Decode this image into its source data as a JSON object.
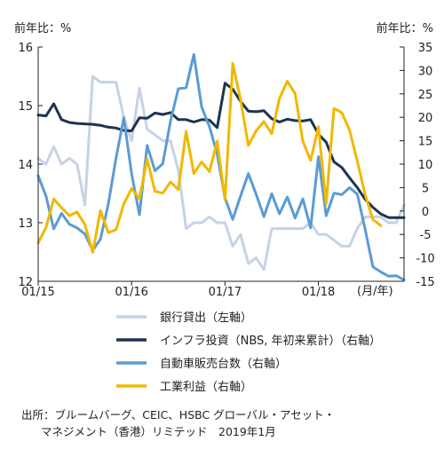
{
  "chart_data": {
    "type": "line",
    "left_axis_label": "前年比：%",
    "right_axis_label": "前年比：%",
    "xaxis_unit_label": "(月/年)",
    "x_tick_labels": [
      "01/15",
      "01/16",
      "01/17",
      "01/18"
    ],
    "x_tick_months": [
      0,
      12,
      24,
      36
    ],
    "x_max_month": 47,
    "left_ylim": [
      12,
      16
    ],
    "left_yticks": [
      12,
      13,
      14,
      15,
      16
    ],
    "right_ylim": [
      -15,
      35
    ],
    "right_yticks": [
      -15,
      -10,
      -5,
      0,
      5,
      10,
      15,
      20,
      25,
      30,
      35
    ],
    "grid": false,
    "series": [
      {
        "name": "銀行貸出（左軸）",
        "axis": "left",
        "color": "#c5d3e6",
        "values": [
          14.1,
          14.0,
          14.3,
          14.0,
          14.1,
          14.0,
          13.3,
          15.5,
          15.4,
          15.4,
          15.4,
          14.8,
          14.4,
          15.3,
          14.6,
          14.5,
          14.4,
          14.4,
          13.9,
          12.9,
          13.0,
          13.0,
          13.1,
          13.0,
          13.0,
          12.6,
          12.8,
          12.3,
          12.4,
          12.2,
          12.9,
          12.9,
          12.9,
          12.9,
          12.9,
          13.0,
          12.8,
          12.8,
          12.7,
          12.6,
          12.6,
          12.9,
          13.1,
          13.1,
          13.1,
          13.0,
          13.0,
          13.3
        ]
      },
      {
        "name": "インフラ投資（NBS、年初来累計）（右軸）",
        "axis": "right",
        "color": "#1f3350",
        "values": [
          20.5,
          20.3,
          22.9,
          19.5,
          18.9,
          18.7,
          18.6,
          18.5,
          18.3,
          17.9,
          17.7,
          17.2,
          17.1,
          19.9,
          19.8,
          20.9,
          20.6,
          21.0,
          19.5,
          19.5,
          19.0,
          19.5,
          19.4,
          17.8,
          27.3,
          26.0,
          23.4,
          21.3,
          21.2,
          21.4,
          19.7,
          19.0,
          19.6,
          19.3,
          19.2,
          19.5,
          16.4,
          14.7,
          10.5,
          9.3,
          7.1,
          5.0,
          2.5,
          0.8,
          -0.6,
          -1.4,
          -1.4,
          -1.4
        ]
      },
      {
        "name": "自動車販売台数（右軸）",
        "axis": "right",
        "color": "#5b9bd5",
        "values": [
          7.5,
          3.2,
          -3.8,
          -0.5,
          -2.8,
          -3.6,
          -4.9,
          -8.4,
          -6.0,
          1.4,
          11.3,
          19.9,
          8.0,
          -0.8,
          14.0,
          8.6,
          10.1,
          19.2,
          26.1,
          26.3,
          33.4,
          22.2,
          18.0,
          12.1,
          2.8,
          -1.8,
          3.2,
          8.0,
          3.6,
          -1.2,
          3.7,
          -0.6,
          3.0,
          -1.5,
          2.6,
          -3.6,
          11.6,
          -1.0,
          3.8,
          3.5,
          5.0,
          3.6,
          -3.9,
          -11.9,
          -13.0,
          -13.9,
          -13.8,
          -14.7
        ]
      },
      {
        "name": "工業利益（右軸）",
        "axis": "right",
        "color": "#f0b800",
        "values": [
          -6.8,
          -3.5,
          2.6,
          0.7,
          -1.0,
          -0.2,
          -2.9,
          -8.8,
          0.1,
          -4.6,
          -4.0,
          1.5,
          4.8,
          2.6,
          11.1,
          4.2,
          3.8,
          6.2,
          4.6,
          17.0,
          8.0,
          10.5,
          8.4,
          14.9,
          2.3,
          31.5,
          23.8,
          14.0,
          17.1,
          19.1,
          16.5,
          24.0,
          27.7,
          25.1,
          14.9,
          10.8,
          18.0,
          1.5,
          21.9,
          21.0,
          17.3,
          10.6,
          3.5,
          -1.8,
          -3.1
        ]
      }
    ]
  },
  "legend": [
    {
      "label": "銀行貸出（左軸）",
      "color": "#c5d3e6"
    },
    {
      "label": "インフラ投資（NBS, 年初来累計）（右軸）",
      "color": "#1f3350"
    },
    {
      "label": "自動車販売台数（右軸）",
      "color": "#5b9bd5"
    },
    {
      "label": "工業利益（右軸）",
      "color": "#f0b800"
    }
  ],
  "source": {
    "line1": "出所：ブルームバーグ、CEIC、HSBC グローバル・アセット・",
    "line2": "マネジメント（香港）リミテッド　2019年1月"
  }
}
